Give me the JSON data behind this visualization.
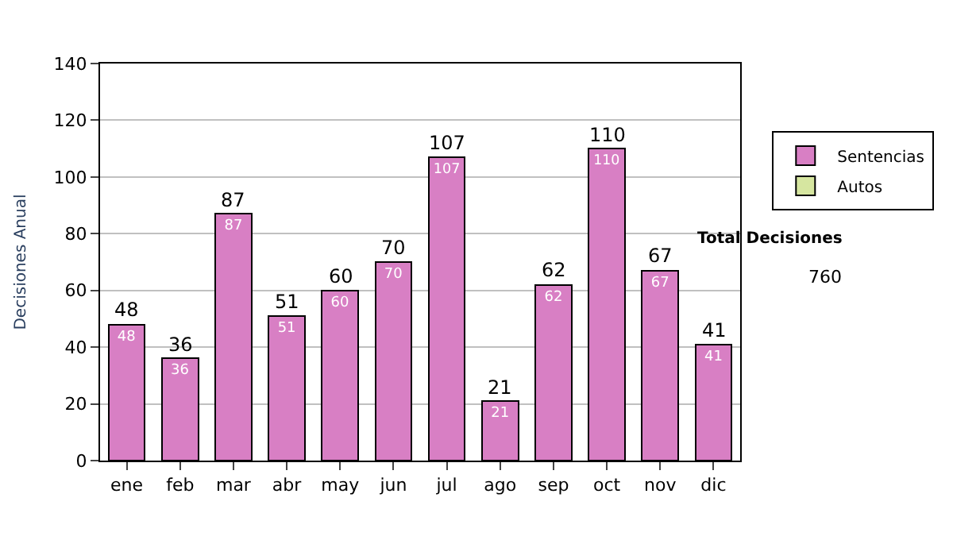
{
  "chart_data": {
    "type": "bar",
    "ylabel": "Decisiones Anual",
    "categories": [
      "ene",
      "feb",
      "mar",
      "abr",
      "may",
      "jun",
      "jul",
      "ago",
      "sep",
      "oct",
      "nov",
      "dic"
    ],
    "series": [
      {
        "name": "Sentencias",
        "color": "#d87fc4",
        "values": [
          48,
          36,
          87,
          51,
          60,
          70,
          107,
          21,
          62,
          110,
          67,
          41
        ],
        "value_labels": [
          "48",
          "36",
          "87",
          "51",
          "60",
          "70",
          "107",
          "21",
          "62",
          "110",
          "67",
          "41"
        ]
      },
      {
        "name": "Autos",
        "color": "#d6e6a0",
        "values": [
          null,
          null,
          null,
          null,
          null,
          null,
          null,
          null,
          null,
          null,
          null,
          null
        ]
      }
    ],
    "stacked": true,
    "totals": [
      "48",
      "36",
      "87",
      "51",
      "60",
      "70",
      "107",
      "21",
      "62",
      "110",
      "67",
      "41"
    ],
    "ylim": [
      0,
      140
    ],
    "yticks": [
      0,
      20,
      40,
      60,
      80,
      100,
      120,
      140
    ],
    "grid": "y",
    "legend": "right",
    "annotations": [
      "Total Decisiones",
      "760"
    ]
  }
}
